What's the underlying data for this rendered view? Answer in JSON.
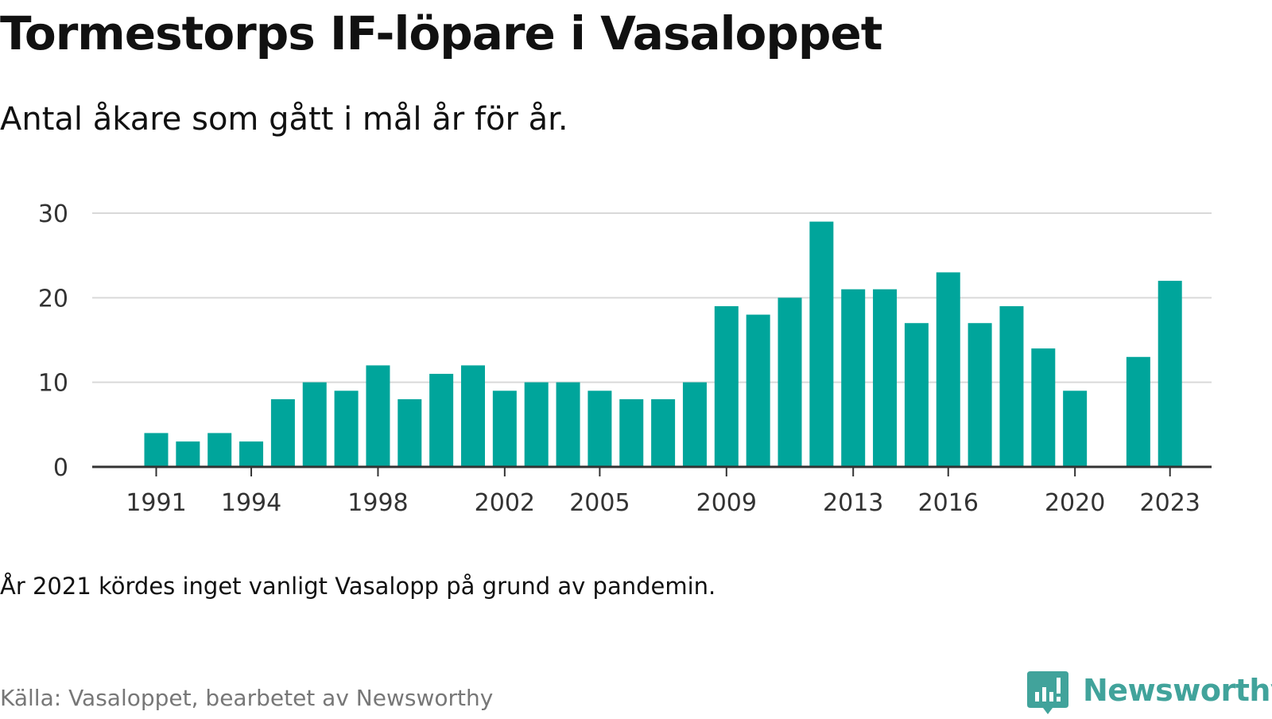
{
  "header": {
    "title": "Tormestorps IF-löpare i Vasaloppet",
    "subtitle": "Antal åkare som gått i mål år för år."
  },
  "footer": {
    "note": "År 2021 kördes inget vanligt Vasalopp på grund av pandemin.",
    "source": "Källa: Vasaloppet, bearbetet av Newsworthy",
    "brand": "Newsworthy",
    "brand_icon": "bar-chart-speech-bubble-icon"
  },
  "colors": {
    "bar": "#00a59b",
    "grid": "#d9d9d9",
    "axis": "#333333",
    "brand": "#41a39b"
  },
  "chart_data": {
    "type": "bar",
    "title": "Tormestorps IF-löpare i Vasaloppet",
    "subtitle": "Antal åkare som gått i mål år för år.",
    "x": [
      1991,
      1992,
      1993,
      1994,
      1995,
      1996,
      1997,
      1998,
      1999,
      2000,
      2001,
      2002,
      2003,
      2004,
      2005,
      2006,
      2007,
      2008,
      2009,
      2010,
      2011,
      2012,
      2013,
      2014,
      2015,
      2016,
      2017,
      2018,
      2019,
      2020,
      2021,
      2022,
      2023
    ],
    "values": [
      4,
      3,
      4,
      3,
      8,
      10,
      9,
      12,
      8,
      11,
      12,
      9,
      10,
      10,
      9,
      8,
      8,
      10,
      19,
      18,
      20,
      29,
      21,
      21,
      17,
      23,
      17,
      19,
      14,
      9,
      null,
      13,
      22
    ],
    "x_ticks": [
      "1991",
      "1994",
      "1998",
      "2002",
      "2005",
      "2009",
      "2013",
      "2016",
      "2020",
      "2023"
    ],
    "y_ticks": [
      "0",
      "10",
      "20",
      "30"
    ],
    "ylim": [
      0,
      30
    ],
    "xlabel": "",
    "ylabel": "",
    "grid": "horizontal",
    "legend": "none"
  }
}
